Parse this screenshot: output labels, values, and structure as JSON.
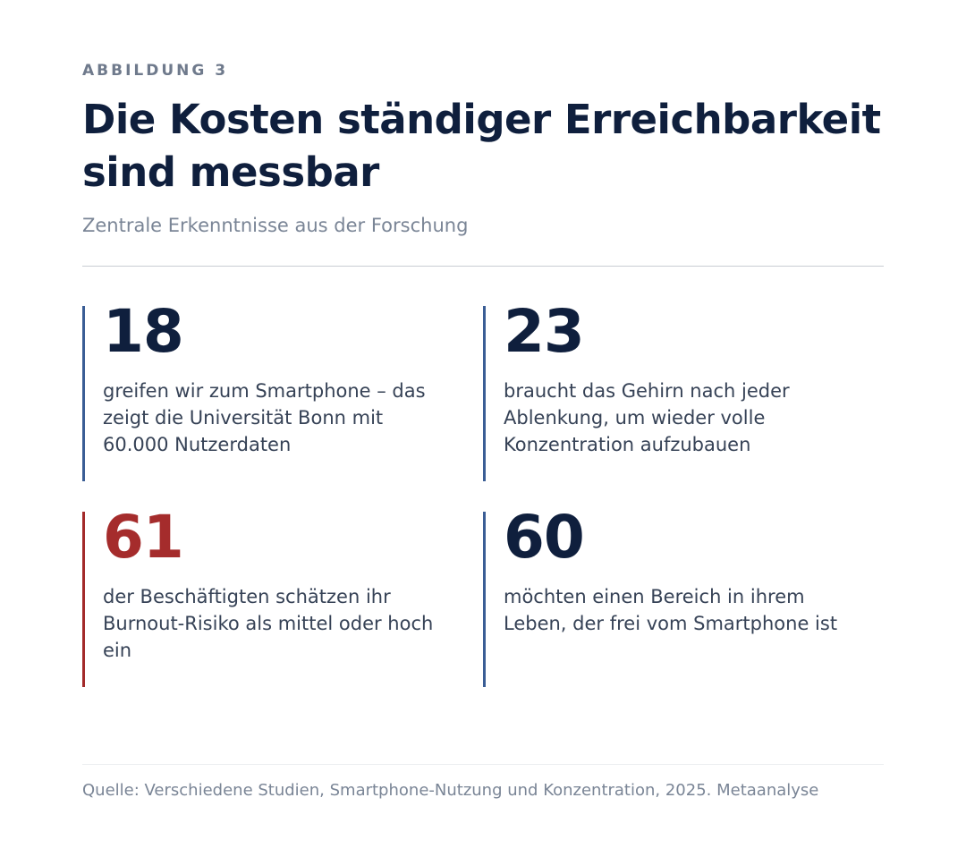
{
  "header": {
    "eyebrow": "ABBILDUNG 3",
    "title": "Die Kosten ständiger Erreichbarkeit sind messbar",
    "subtitle": "Zentrale Erkenntnisse aus der Forschung"
  },
  "stats": [
    {
      "value": "18",
      "text": "greifen wir zum Smartphone – das zeigt die Universität Bonn mit 60.000 Nutzerdaten",
      "accent": "#3a5d95"
    },
    {
      "value": "23",
      "text": "braucht das Gehirn nach jeder Ablenkung, um wieder volle Konzentration aufzubauen",
      "accent": "#3a5d95"
    },
    {
      "value": "61",
      "text": "der Beschäftigten schätzen ihr Burnout-Risiko als mittel oder hoch ein",
      "accent": "#a32a2a"
    },
    {
      "value": "60",
      "text": "möchten einen Bereich in ihrem Leben, der frei vom Smartphone ist",
      "accent": "#3a5d95"
    }
  ],
  "footer": {
    "source": "Quelle: Verschiedene Studien, Smartphone-Nutzung und Konzentration, 2025. Metaanalyse"
  },
  "colors": {
    "navy": "#0f1f3d",
    "accent_blue": "#3a5d95",
    "accent_red": "#a32a2a",
    "muted": "#7a8596"
  }
}
